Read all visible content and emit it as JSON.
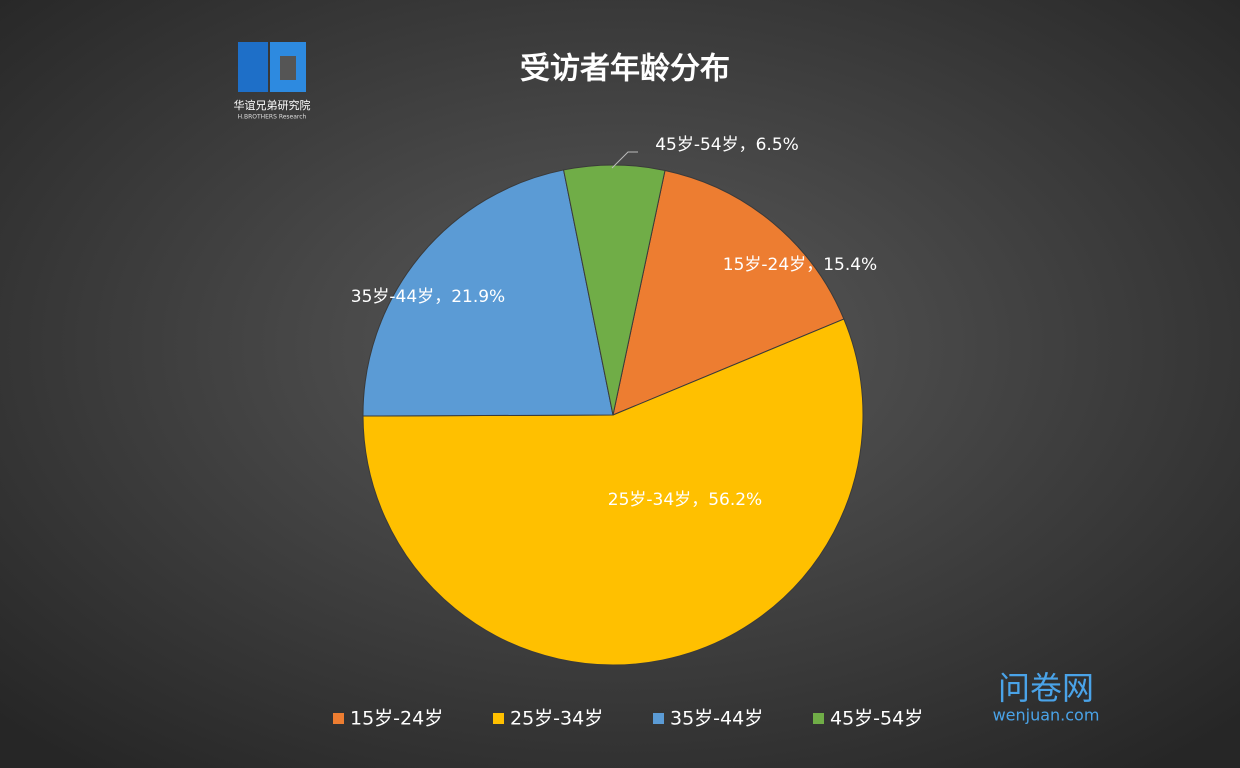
{
  "chart_data": {
    "type": "pie",
    "title": "受访者年龄分布",
    "categories": [
      "15岁-24岁",
      "25岁-34岁",
      "35岁-44岁",
      "45岁-54岁"
    ],
    "values": [
      15.4,
      56.2,
      21.9,
      6.5
    ],
    "value_labels": [
      "15.4%",
      "56.2%",
      "21.9%",
      "6.5%"
    ],
    "label_separator": "，",
    "colors": [
      "#ed7d31",
      "#ffc000",
      "#5b9bd5",
      "#70ad47"
    ],
    "legend": "bottom"
  },
  "logo": {
    "name": "华谊兄弟研究院",
    "subtitle": "H.BROTHERS Research"
  },
  "watermark": {
    "name": "问卷网",
    "url": "wenjuan.com"
  }
}
